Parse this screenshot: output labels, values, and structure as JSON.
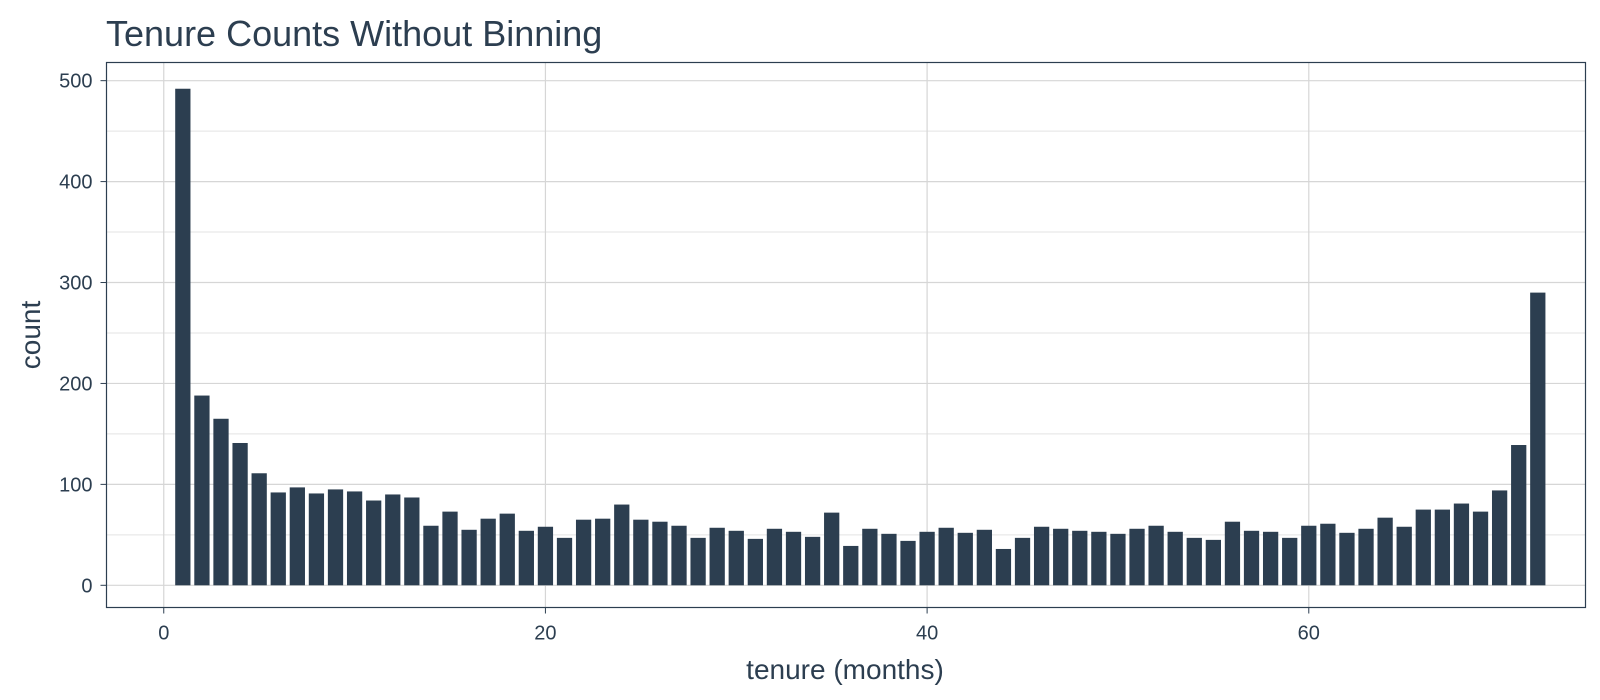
{
  "chart_data": {
    "type": "bar",
    "title": "Tenure Counts Without Binning",
    "xlabel": "tenure (months)",
    "ylabel": "count",
    "x": [
      1,
      2,
      3,
      4,
      5,
      6,
      7,
      8,
      9,
      10,
      11,
      12,
      13,
      14,
      15,
      16,
      17,
      18,
      19,
      20,
      21,
      22,
      23,
      24,
      25,
      26,
      27,
      28,
      29,
      30,
      31,
      32,
      33,
      34,
      35,
      36,
      37,
      38,
      39,
      40,
      41,
      42,
      43,
      44,
      45,
      46,
      47,
      48,
      49,
      50,
      51,
      52,
      53,
      54,
      55,
      56,
      57,
      58,
      59,
      60,
      61,
      62,
      63,
      64,
      65,
      66,
      67,
      68,
      69,
      70,
      71,
      72
    ],
    "values": [
      492,
      188,
      165,
      141,
      111,
      92,
      97,
      91,
      95,
      93,
      84,
      90,
      87,
      59,
      73,
      55,
      66,
      71,
      54,
      58,
      47,
      65,
      66,
      80,
      65,
      63,
      59,
      47,
      57,
      54,
      46,
      56,
      53,
      48,
      72,
      39,
      56,
      51,
      44,
      53,
      57,
      52,
      55,
      36,
      47,
      58,
      56,
      54,
      53,
      51,
      56,
      59,
      53,
      47,
      45,
      63,
      54,
      53,
      47,
      59,
      61,
      52,
      56,
      67,
      58,
      75,
      75,
      81,
      73,
      94,
      139,
      290
    ],
    "xlim": [
      -3,
      74.5
    ],
    "ylim": [
      -22,
      518
    ],
    "x_ticks": [
      0,
      20,
      40,
      60
    ],
    "x_tick_labels": [
      "0",
      "20",
      "40",
      "60"
    ],
    "y_ticks": [
      0,
      100,
      200,
      300,
      400,
      500
    ],
    "y_tick_labels": [
      "0",
      "100",
      "200",
      "300",
      "400",
      "500"
    ],
    "grid": true,
    "colors": {
      "bar": "#2c3e50",
      "text": "#2c3e50",
      "grid": "#d6d6d6"
    }
  }
}
